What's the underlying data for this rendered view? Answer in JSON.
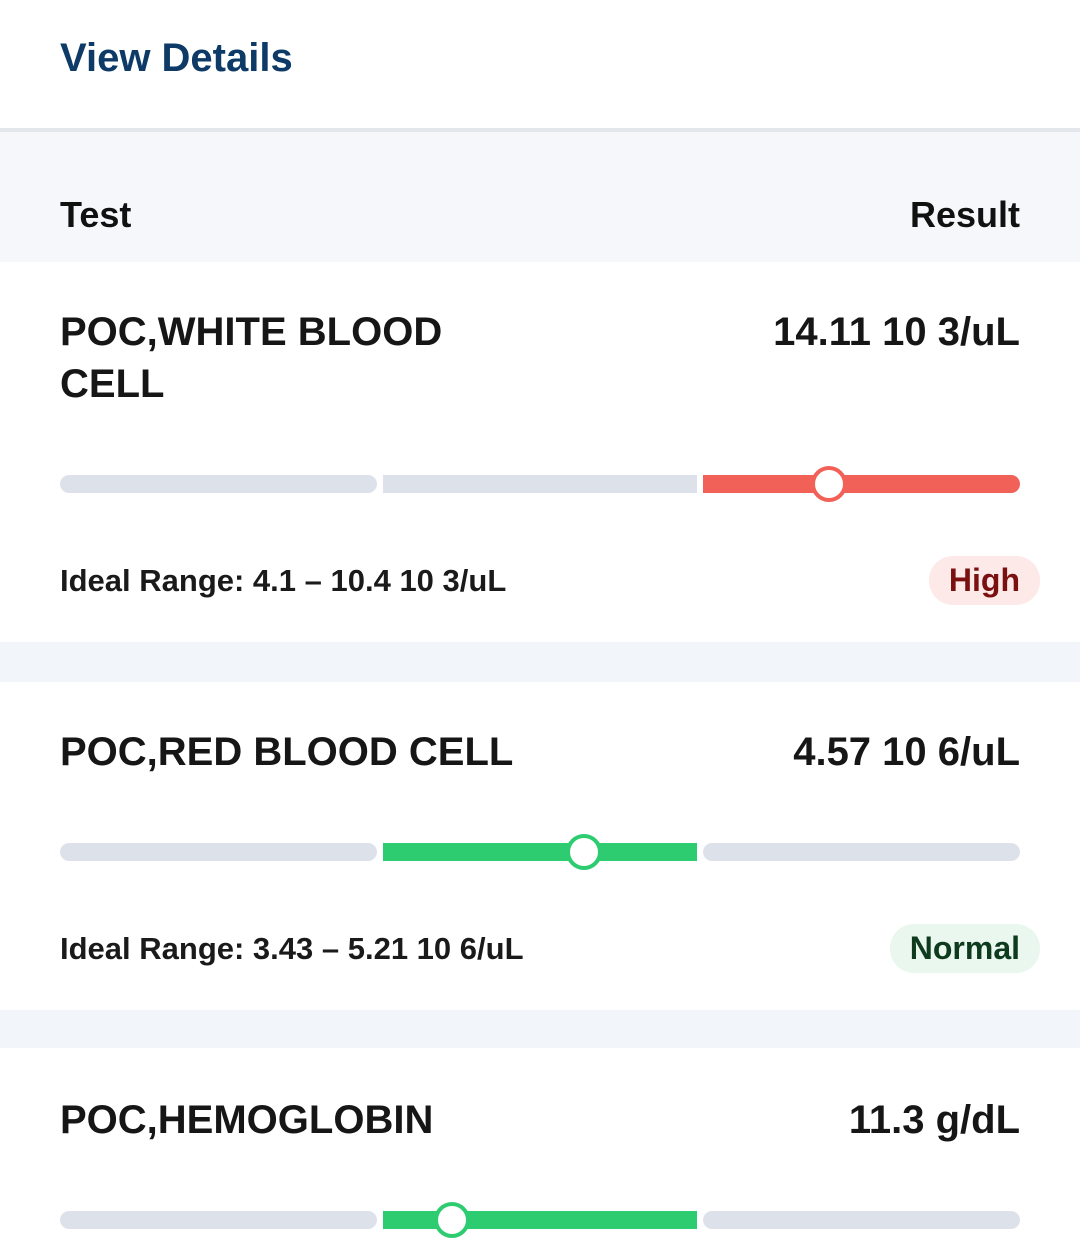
{
  "header": {
    "title": "View Details"
  },
  "table": {
    "columns": [
      "Test",
      "Result"
    ],
    "rows": [
      {
        "name": "POC,WHITE BLOOD CELL",
        "result": "14.11 10 3/uL",
        "ideal_range": "Ideal Range: 4.1 – 10.4 10 3/uL",
        "status": "High"
      },
      {
        "name": "POC,RED BLOOD CELL",
        "result": "4.57 10 6/uL",
        "ideal_range": "Ideal Range: 3.43 – 5.21 10 6/uL",
        "status": "Normal"
      },
      {
        "name": "POC,HEMOGLOBIN",
        "result": "11.3 g/dL"
      }
    ]
  }
}
